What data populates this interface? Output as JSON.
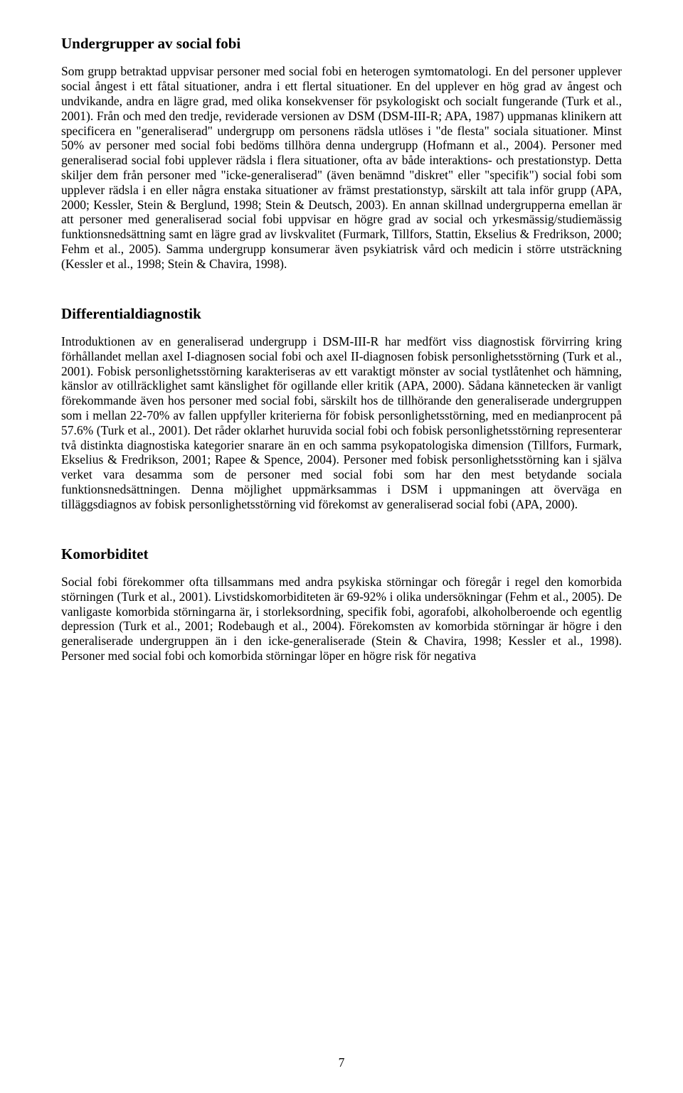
{
  "doc": {
    "page_number": "7",
    "sections": {
      "s1": {
        "heading": "Undergrupper av social fobi",
        "body": "Som grupp betraktad uppvisar personer med social fobi en heterogen symtomatologi. En del personer upplever social ångest i ett fåtal situationer, andra i ett flertal situationer. En del upplever en hög grad av ångest och undvikande, andra en lägre grad, med olika konsekvenser för psykologiskt och socialt fungerande (Turk et al., 2001). Från och med den tredje, reviderade versionen av DSM (DSM-III-R; APA, 1987) uppmanas klinikern att specificera en \"generaliserad\" undergrupp om personens rädsla utlöses i \"de flesta\" sociala situationer. Minst 50% av personer med social fobi bedöms tillhöra denna undergrupp (Hofmann et al., 2004). Personer med generaliserad social fobi upplever rädsla i flera situationer, ofta av både interaktions- och prestationstyp. Detta skiljer dem från personer med \"icke-generaliserad\" (även benämnd \"diskret\" eller \"specifik\") social fobi som upplever rädsla i en eller några enstaka situationer av främst prestationstyp, särskilt att tala inför grupp (APA, 2000; Kessler, Stein & Berglund, 1998; Stein & Deutsch, 2003). En annan skillnad undergrupperna emellan är att personer med generaliserad social fobi uppvisar en högre grad av social och yrkesmässig/studiemässig funktionsnedsättning samt en lägre grad av livskvalitet (Furmark, Tillfors, Stattin, Ekselius & Fredrikson, 2000; Fehm et al., 2005). Samma undergrupp konsumerar även psykiatrisk vård och medicin i större utsträckning (Kessler et al., 1998; Stein & Chavira, 1998)."
      },
      "s2": {
        "heading": "Differentialdiagnostik",
        "body": "Introduktionen av en generaliserad undergrupp i DSM-III-R har medfört viss diagnostisk förvirring kring förhållandet mellan axel I-diagnosen social fobi och axel II-diagnosen fobisk personlighetsstörning (Turk et al., 2001). Fobisk personlighetsstörning karakteriseras av ett varaktigt mönster av social tystlåtenhet och hämning, känslor av otillräcklighet samt känslighet för ogillande eller kritik (APA, 2000). Sådana kännetecken är vanligt förekommande även hos personer med social fobi, särskilt hos de tillhörande den generaliserade undergruppen som i mellan 22-70% av fallen uppfyller kriterierna för fobisk personlighetsstörning, med en medianprocent på 57.6% (Turk et al., 2001). Det råder oklarhet huruvida social fobi och fobisk personlighetsstörning representerar två distinkta diagnostiska kategorier snarare än en och samma psykopatologiska dimension (Tillfors, Furmark, Ekselius & Fredrikson, 2001; Rapee & Spence, 2004). Personer med fobisk personlighetsstörning kan i själva verket vara desamma som de personer med social fobi som har den mest betydande sociala funktionsnedsättningen. Denna möjlighet uppmärksammas i DSM i uppmaningen att överväga en tilläggsdiagnos av fobisk personlighetsstörning vid förekomst av generaliserad social fobi (APA, 2000)."
      },
      "s3": {
        "heading": "Komorbiditet",
        "body": "Social fobi förekommer ofta tillsammans med andra psykiska störningar och föregår i regel den komorbida störningen (Turk et al., 2001). Livstidskomorbiditeten är 69-92% i olika undersökningar (Fehm et al., 2005). De vanligaste komorbida störningarna är, i storleksordning, specifik fobi, agorafobi, alkoholberoende och egentlig depression (Turk et al., 2001; Rodebaugh et al., 2004). Förekomsten av komorbida störningar är högre i den generaliserade undergruppen än i den icke-generaliserade (Stein & Chavira, 1998; Kessler et al., 1998). Personer med social fobi och komorbida störningar löper en högre risk för negativa"
      }
    }
  }
}
